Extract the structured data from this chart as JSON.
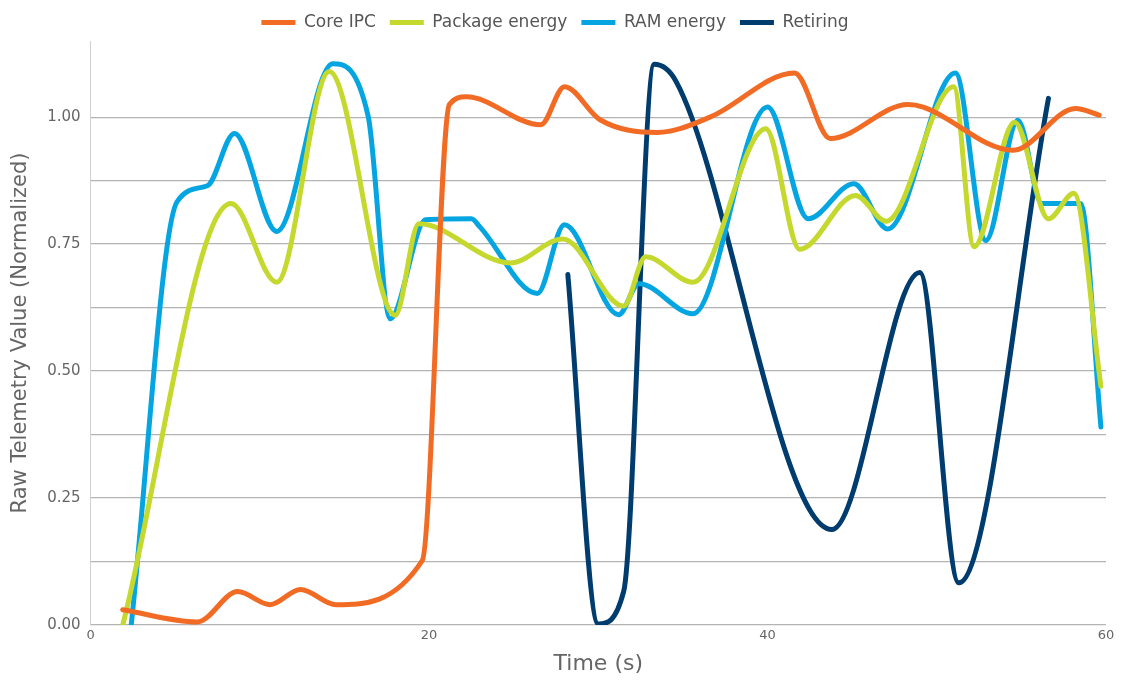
{
  "chart_data": {
    "type": "line",
    "xlabel": "Time (s)",
    "ylabel": "Raw Telemetry Value (Normalized)",
    "xlim": [
      0,
      60
    ],
    "xticks": [
      0,
      20,
      40,
      60
    ],
    "ylim": [
      0,
      1.15
    ],
    "yticks": [
      {
        "value": 0,
        "label": "0.00"
      },
      {
        "value": 0.125,
        "label": null
      },
      {
        "value": 0.25,
        "label": "0.25"
      },
      {
        "value": 0.375,
        "label": null
      },
      {
        "value": 0.5,
        "label": "0.50"
      },
      {
        "value": 0.625,
        "label": null
      },
      {
        "value": 0.75,
        "label": "0.75"
      },
      {
        "value": 0.875,
        "label": null
      },
      {
        "value": 1,
        "label": "1.00"
      }
    ],
    "grid": "y",
    "legend": "top",
    "marker": "none",
    "line_style": "solid",
    "series": [
      {
        "name": "Core IPC",
        "color": "#f26b24",
        "x": [
          1.9,
          6.3,
          8.7,
          10.6,
          12.4,
          14.5,
          19.6,
          21.2,
          22.2,
          26.6,
          28.0,
          30.1,
          33.5,
          36.6,
          41.6,
          43.7,
          48.3,
          49.2,
          54.5,
          58.2,
          59.6
        ],
        "values": [
          0.03,
          0.006,
          0.066,
          0.04,
          0.07,
          0.04,
          0.127,
          1.025,
          1.04,
          0.985,
          1.06,
          0.995,
          0.97,
          1.0,
          1.087,
          0.958,
          1.025,
          1.02,
          0.935,
          1.017,
          1.004
        ]
      },
      {
        "name": "Package energy",
        "color": "#c4d82e",
        "x": [
          1.9,
          8.3,
          11.0,
          14.1,
          18.0,
          19.4,
          24.8,
          27.9,
          31.5,
          32.8,
          35.6,
          39.9,
          41.9,
          45.2,
          47.0,
          51.0,
          52.2,
          54.6,
          56.6,
          58.1,
          59.7
        ],
        "values": [
          0.0,
          0.83,
          0.675,
          1.09,
          0.61,
          0.79,
          0.713,
          0.76,
          0.628,
          0.725,
          0.675,
          0.977,
          0.74,
          0.846,
          0.795,
          1.06,
          0.745,
          0.99,
          0.8,
          0.85,
          0.47
        ]
      },
      {
        "name": "RAM energy",
        "color": "#05a5e2",
        "x": [
          2.4,
          5.1,
          6.9,
          8.5,
          11.0,
          14.3,
          16.4,
          17.7,
          19.8,
          22.5,
          23.0,
          26.4,
          28.0,
          31.2,
          32.4,
          35.6,
          40.0,
          42.4,
          45.1,
          47.1,
          51.1,
          52.9,
          54.8,
          56.2,
          58.5,
          59.7
        ],
        "values": [
          0.0,
          0.833,
          0.865,
          0.968,
          0.775,
          1.105,
          1.002,
          0.603,
          0.798,
          0.8,
          0.784,
          0.653,
          0.788,
          0.611,
          0.672,
          0.613,
          1.02,
          0.8,
          0.869,
          0.78,
          1.087,
          0.757,
          0.994,
          0.83,
          0.83,
          0.39
        ]
      },
      {
        "name": "Retiring",
        "color": "#003c6e",
        "x": [
          28.2,
          30.0,
          31.5,
          33.3,
          34.6,
          43.8,
          49.0,
          51.3,
          56.6
        ],
        "values": [
          0.69,
          0.002,
          0.066,
          1.104,
          1.07,
          0.188,
          0.694,
          0.083,
          1.037
        ]
      }
    ]
  }
}
